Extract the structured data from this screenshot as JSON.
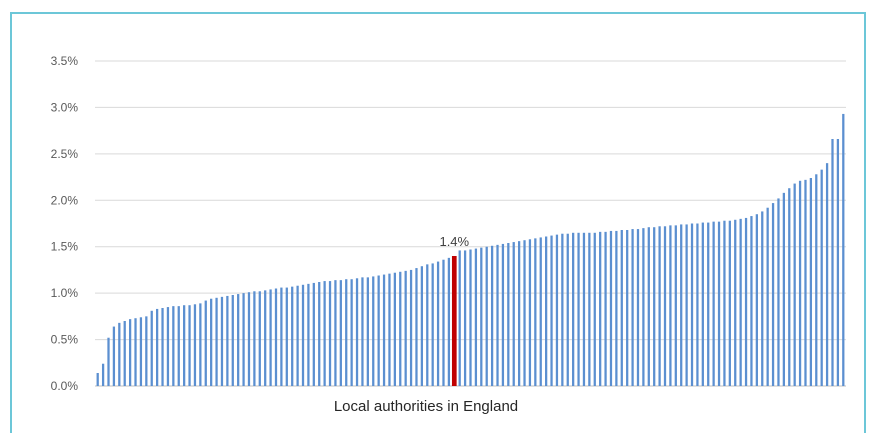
{
  "chart_data": {
    "type": "bar",
    "title": "",
    "xlabel": "Local authorities in England",
    "ylabel": "",
    "ylim": [
      0,
      0.035
    ],
    "yticks": [
      "0.0%",
      "0.5%",
      "1.0%",
      "1.5%",
      "2.0%",
      "2.5%",
      "3.0%",
      "3.5%"
    ],
    "grid": true,
    "series_color": "#5b8fd0",
    "highlight_color": "#c00000",
    "highlight_index": 66,
    "highlight_label": "1.4%",
    "values": [
      0.0014,
      0.0024,
      0.0052,
      0.0064,
      0.0068,
      0.007,
      0.0072,
      0.0073,
      0.0074,
      0.0075,
      0.0081,
      0.0083,
      0.0084,
      0.0085,
      0.0086,
      0.0086,
      0.0087,
      0.0087,
      0.0088,
      0.0089,
      0.0092,
      0.0094,
      0.0095,
      0.0096,
      0.0097,
      0.0098,
      0.0099,
      0.01,
      0.0101,
      0.0102,
      0.0102,
      0.0103,
      0.0104,
      0.0105,
      0.0106,
      0.0106,
      0.0107,
      0.0108,
      0.0109,
      0.011,
      0.0111,
      0.0112,
      0.0113,
      0.0113,
      0.0114,
      0.0114,
      0.0115,
      0.0115,
      0.0116,
      0.0117,
      0.0117,
      0.0118,
      0.0119,
      0.012,
      0.0121,
      0.0122,
      0.0123,
      0.0124,
      0.0125,
      0.0127,
      0.0129,
      0.0131,
      0.0132,
      0.0134,
      0.0136,
      0.0138,
      0.014,
      0.0146,
      0.0146,
      0.0147,
      0.0148,
      0.0149,
      0.015,
      0.0151,
      0.0152,
      0.0153,
      0.0154,
      0.0155,
      0.0156,
      0.0157,
      0.0158,
      0.0159,
      0.016,
      0.0161,
      0.0162,
      0.0163,
      0.0164,
      0.0164,
      0.0165,
      0.0165,
      0.0165,
      0.0165,
      0.0165,
      0.0166,
      0.0166,
      0.0167,
      0.0167,
      0.0168,
      0.0168,
      0.0169,
      0.0169,
      0.017,
      0.0171,
      0.0171,
      0.0172,
      0.0172,
      0.0173,
      0.0173,
      0.0174,
      0.0174,
      0.0175,
      0.0175,
      0.0176,
      0.0176,
      0.0177,
      0.0177,
      0.0178,
      0.0178,
      0.0179,
      0.018,
      0.0181,
      0.0183,
      0.0185,
      0.0188,
      0.0192,
      0.0197,
      0.0202,
      0.0208,
      0.0213,
      0.0218,
      0.0221,
      0.0222,
      0.0224,
      0.0228,
      0.0233,
      0.024,
      0.0266,
      0.0266,
      0.0293
    ]
  }
}
